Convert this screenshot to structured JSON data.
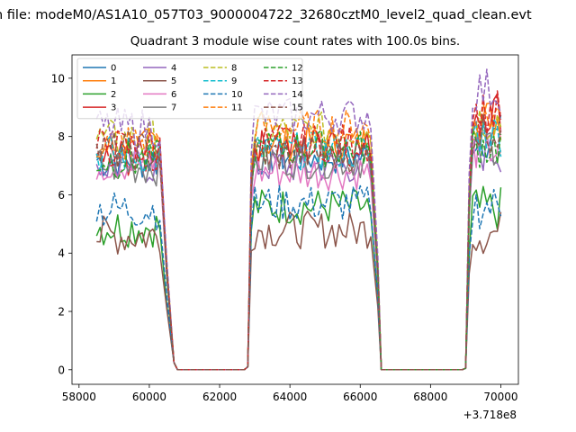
{
  "chart_data": {
    "type": "line",
    "suptitle": "n file: modeM0/AS1A10_057T03_9000004722_32680cztM0_level2_quad_clean.evt",
    "title": "Quadrant 3 module wise count rates with 100.0s bins.",
    "xlabel": "",
    "ylabel": "",
    "x_offset_label": "+3.718e8",
    "xlim": [
      57800,
      70500
    ],
    "ylim": [
      -0.5,
      10.8
    ],
    "xticks": [
      58000,
      60000,
      62000,
      64000,
      66000,
      68000,
      70000
    ],
    "xtick_labels": [
      "58000",
      "60000",
      "62000",
      "64000",
      "66000",
      "68000",
      "70000"
    ],
    "yticks": [
      0,
      2,
      4,
      6,
      8,
      10
    ],
    "ytick_labels": [
      "0",
      "2",
      "4",
      "6",
      "8",
      "10"
    ],
    "grid": false,
    "legend_position": "top-left",
    "legend_columns": 4,
    "segments": [
      {
        "x_start": 58500,
        "x_end": 60300,
        "fall_end": 60800
      },
      {
        "x_start": 62700,
        "rise_end": 62950,
        "x_end": 66200,
        "fall_end": 66600
      },
      {
        "x_start": 69000,
        "rise_end": 69150,
        "x_end": 70000
      }
    ],
    "series": [
      {
        "name": "0",
        "color": "#1f77b4",
        "dash": "solid",
        "level": 7.2,
        "level2": 7.3,
        "level3": 8.0
      },
      {
        "name": "1",
        "color": "#ff7f0e",
        "dash": "solid",
        "level": 7.6,
        "level2": 7.8,
        "level3": 8.6
      },
      {
        "name": "2",
        "color": "#2ca02c",
        "dash": "solid",
        "level": 4.9,
        "level2": 5.6,
        "level3": 5.5
      },
      {
        "name": "3",
        "color": "#d62728",
        "dash": "solid",
        "level": 7.3,
        "level2": 7.6,
        "level3": 8.9
      },
      {
        "name": "4",
        "color": "#9467bd",
        "dash": "solid",
        "level": 7.0,
        "level2": 7.0,
        "level3": 7.5
      },
      {
        "name": "5",
        "color": "#8c564b",
        "dash": "solid",
        "level": 4.6,
        "level2": 4.8,
        "level3": 4.7
      },
      {
        "name": "6",
        "color": "#e377c2",
        "dash": "solid",
        "level": 7.1,
        "level2": 6.8,
        "level3": 7.6
      },
      {
        "name": "7",
        "color": "#7f7f7f",
        "dash": "solid",
        "level": 7.0,
        "level2": 7.2,
        "level3": 7.8
      },
      {
        "name": "8",
        "color": "#bcbd22",
        "dash": "dashed",
        "level": 7.9,
        "level2": 8.2,
        "level3": 8.6
      },
      {
        "name": "9",
        "color": "#17becf",
        "dash": "dashed",
        "level": 7.4,
        "level2": 7.5,
        "level3": 8.1
      },
      {
        "name": "10",
        "color": "#1f77b4",
        "dash": "dashed",
        "level": 5.5,
        "level2": 5.7,
        "level3": 5.6
      },
      {
        "name": "11",
        "color": "#ff7f0e",
        "dash": "dashed",
        "level": 7.8,
        "level2": 8.3,
        "level3": 8.7
      },
      {
        "name": "12",
        "color": "#2ca02c",
        "dash": "dashed",
        "level": 7.2,
        "level2": 7.6,
        "level3": 7.7
      },
      {
        "name": "13",
        "color": "#d62728",
        "dash": "dashed",
        "level": 7.6,
        "level2": 7.8,
        "level3": 8.8
      },
      {
        "name": "14",
        "color": "#9467bd",
        "dash": "dashed",
        "level": 8.3,
        "level2": 8.7,
        "level3": 9.6
      },
      {
        "name": "15",
        "color": "#8c564b",
        "dash": "dashed",
        "level": 7.5,
        "level2": 7.4,
        "level3": 8.2
      }
    ]
  }
}
